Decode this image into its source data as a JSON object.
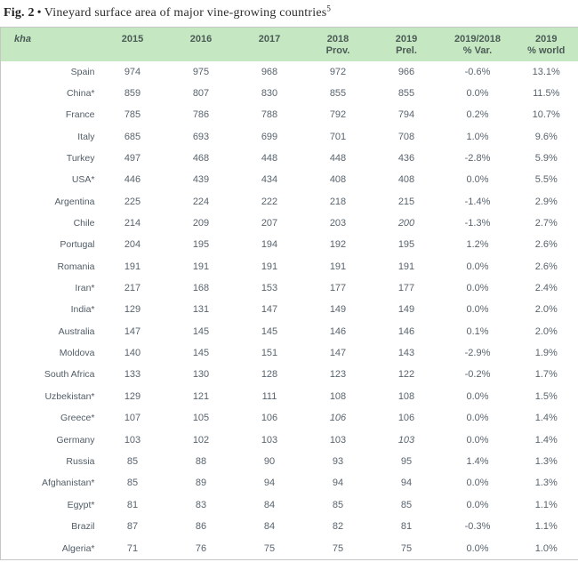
{
  "figure": {
    "label": "Fig. 2",
    "separator": "•",
    "title": "Vineyard surface area of major vine-growing countries",
    "footnote_marker": "5"
  },
  "colors": {
    "header_bg": "#c5e8c3",
    "header_text": "#4b5a55",
    "body_text": "#59646e",
    "table_border": "#c6c6c6"
  },
  "chart_data": {
    "type": "table",
    "title": "Vineyard surface area of major vine-growing countries",
    "unit": "kha",
    "columns": [
      {
        "line1": "2015",
        "line2": ""
      },
      {
        "line1": "2016",
        "line2": ""
      },
      {
        "line1": "2017",
        "line2": ""
      },
      {
        "line1": "2018",
        "line2": "Prov."
      },
      {
        "line1": "2019",
        "line2": "Prel."
      },
      {
        "line1": "2019/2018",
        "line2": "% Var."
      },
      {
        "line1": "2019",
        "line2": "% world"
      }
    ],
    "rows": [
      {
        "country": "Spain",
        "values": [
          "974",
          "975",
          "968",
          "972",
          "966",
          "-0.6%",
          "13.1%"
        ],
        "italic_cols": []
      },
      {
        "country": "China*",
        "values": [
          "859",
          "807",
          "830",
          "855",
          "855",
          "0.0%",
          "11.5%"
        ],
        "italic_cols": []
      },
      {
        "country": "France",
        "values": [
          "785",
          "786",
          "788",
          "792",
          "794",
          "0.2%",
          "10.7%"
        ],
        "italic_cols": []
      },
      {
        "country": "Italy",
        "values": [
          "685",
          "693",
          "699",
          "701",
          "708",
          "1.0%",
          "9.6%"
        ],
        "italic_cols": []
      },
      {
        "country": "Turkey",
        "values": [
          "497",
          "468",
          "448",
          "448",
          "436",
          "-2.8%",
          "5.9%"
        ],
        "italic_cols": []
      },
      {
        "country": "USA*",
        "values": [
          "446",
          "439",
          "434",
          "408",
          "408",
          "0.0%",
          "5.5%"
        ],
        "italic_cols": []
      },
      {
        "country": "Argentina",
        "values": [
          "225",
          "224",
          "222",
          "218",
          "215",
          "-1.4%",
          "2.9%"
        ],
        "italic_cols": []
      },
      {
        "country": "Chile",
        "values": [
          "214",
          "209",
          "207",
          "203",
          "200",
          "-1.3%",
          "2.7%"
        ],
        "italic_cols": [
          4
        ]
      },
      {
        "country": "Portugal",
        "values": [
          "204",
          "195",
          "194",
          "192",
          "195",
          "1.2%",
          "2.6%"
        ],
        "italic_cols": []
      },
      {
        "country": "Romania",
        "values": [
          "191",
          "191",
          "191",
          "191",
          "191",
          "0.0%",
          "2.6%"
        ],
        "italic_cols": []
      },
      {
        "country": "Iran*",
        "values": [
          "217",
          "168",
          "153",
          "177",
          "177",
          "0.0%",
          "2.4%"
        ],
        "italic_cols": []
      },
      {
        "country": "India*",
        "values": [
          "129",
          "131",
          "147",
          "149",
          "149",
          "0.0%",
          "2.0%"
        ],
        "italic_cols": []
      },
      {
        "country": "Australia",
        "values": [
          "147",
          "145",
          "145",
          "146",
          "146",
          "0.1%",
          "2.0%"
        ],
        "italic_cols": []
      },
      {
        "country": "Moldova",
        "values": [
          "140",
          "145",
          "151",
          "147",
          "143",
          "-2.9%",
          "1.9%"
        ],
        "italic_cols": []
      },
      {
        "country": "South Africa",
        "values": [
          "133",
          "130",
          "128",
          "123",
          "122",
          "-0.2%",
          "1.7%"
        ],
        "italic_cols": []
      },
      {
        "country": "Uzbekistan*",
        "values": [
          "129",
          "121",
          "111",
          "108",
          "108",
          "0.0%",
          "1.5%"
        ],
        "italic_cols": []
      },
      {
        "country": "Greece*",
        "values": [
          "107",
          "105",
          "106",
          "106",
          "106",
          "0.0%",
          "1.4%"
        ],
        "italic_cols": [
          3
        ]
      },
      {
        "country": "Germany",
        "values": [
          "103",
          "102",
          "103",
          "103",
          "103",
          "0.0%",
          "1.4%"
        ],
        "italic_cols": [
          4
        ]
      },
      {
        "country": "Russia",
        "values": [
          "85",
          "88",
          "90",
          "93",
          "95",
          "1.4%",
          "1.3%"
        ],
        "italic_cols": []
      },
      {
        "country": "Afghanistan*",
        "values": [
          "85",
          "89",
          "94",
          "94",
          "94",
          "0.0%",
          "1.3%"
        ],
        "italic_cols": []
      },
      {
        "country": "Egypt*",
        "values": [
          "81",
          "83",
          "84",
          "85",
          "85",
          "0.0%",
          "1.1%"
        ],
        "italic_cols": []
      },
      {
        "country": "Brazil",
        "values": [
          "87",
          "86",
          "84",
          "82",
          "81",
          "-0.3%",
          "1.1%"
        ],
        "italic_cols": []
      },
      {
        "country": "Algeria*",
        "values": [
          "71",
          "76",
          "75",
          "75",
          "75",
          "0.0%",
          "1.0%"
        ],
        "italic_cols": []
      }
    ]
  }
}
